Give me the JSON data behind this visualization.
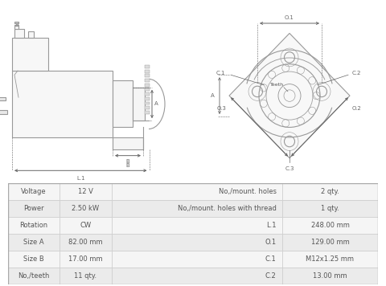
{
  "bg_color": "#ffffff",
  "line_color": "#999999",
  "dim_color": "#666666",
  "text_color": "#555555",
  "fill_color": "#f7f7f7",
  "table_data": [
    [
      "Voltage",
      "12 V",
      "No,/mount. holes",
      "2 qty."
    ],
    [
      "Power",
      "2.50 kW",
      "No,/mount. holes with thread",
      "1 qty."
    ],
    [
      "Rotation",
      "CW",
      "L.1",
      "248.00 mm"
    ],
    [
      "Size A",
      "82.00 mm",
      "O.1",
      "129.00 mm"
    ],
    [
      "Size B",
      "17.00 mm",
      "C.1",
      "M12x1.25 mm"
    ],
    [
      "No,/teeth",
      "11 qty.",
      "C.2",
      "13.00 mm"
    ]
  ],
  "table_row_colors": [
    "#f5f5f5",
    "#ebebeb"
  ],
  "table_border_color": "#cccccc"
}
